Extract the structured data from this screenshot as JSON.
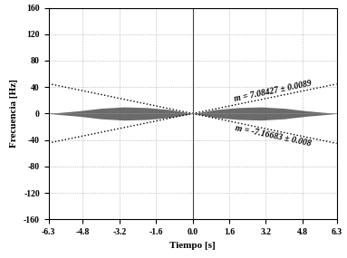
{
  "chart_data": {
    "type": "area",
    "x_label": "Tiempo [s]",
    "y_label": "Frecuencia [Hz]",
    "xlim": [
      -6.3,
      6.3
    ],
    "ylim": [
      -160,
      160
    ],
    "xticks": [
      -6.3,
      -4.8,
      -3.2,
      -1.6,
      {
        "value": 0,
        "label": "0.0"
      },
      1.6,
      3.2,
      4.8,
      6.3
    ],
    "yticks": [
      -160,
      -120,
      -80,
      -40,
      0,
      40,
      80,
      120,
      160
    ],
    "grid": true,
    "series": [
      {
        "type": "area",
        "color": "#3a3a3a",
        "x": [
          -6.3,
          -6.0,
          -5.0,
          -4.0,
          -3.0,
          -2.0,
          -1.0,
          0.0,
          1.0,
          2.0,
          3.0,
          4.0,
          5.0,
          6.0,
          6.3
        ],
        "upper": [
          0,
          1,
          4,
          8,
          10,
          9,
          6,
          0,
          6,
          9,
          10,
          8,
          4,
          1,
          0
        ],
        "lower": [
          0,
          -1,
          -4,
          -8,
          -10,
          -9,
          -6,
          0,
          -6,
          -9,
          -10,
          -8,
          -4,
          -1,
          0
        ]
      },
      {
        "type": "line",
        "color": "#000000",
        "line_style": "dotted",
        "annotation": "m = 7.08427 ± 0.0089",
        "x": [
          -6.3,
          6.3
        ],
        "values": [
          -44.6,
          44.6
        ]
      },
      {
        "type": "line",
        "color": "#000000",
        "line_style": "dotted",
        "annotation": "m = -7.16683 ± 0.008",
        "x": [
          -6.3,
          6.3
        ],
        "values": [
          45.2,
          -45.2
        ]
      }
    ]
  }
}
